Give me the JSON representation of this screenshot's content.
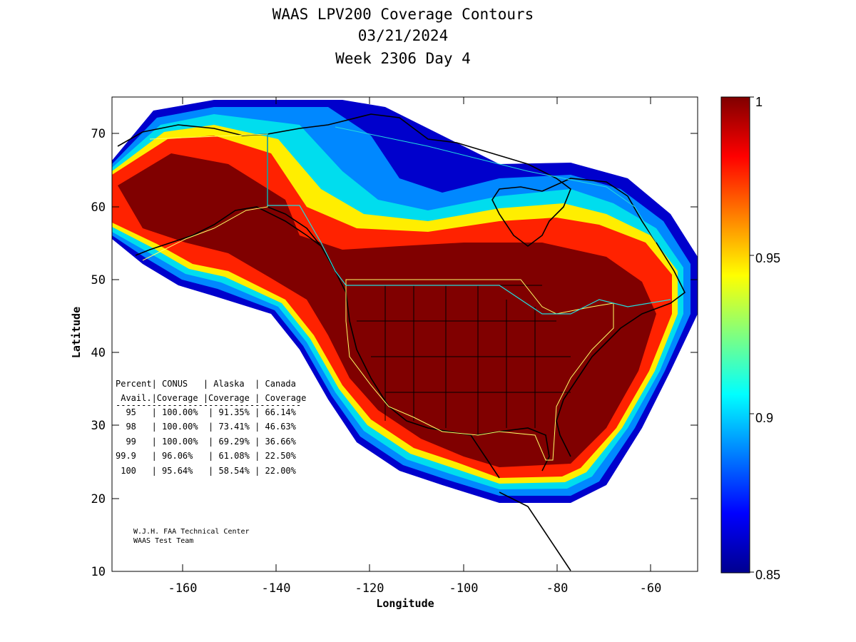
{
  "header": {
    "title": "WAAS LPV200 Coverage Contours",
    "date": "03/21/2024",
    "week_day": "Week 2306 Day 4"
  },
  "axes": {
    "xlabel": "Longitude",
    "ylabel": "Latitude",
    "x_ticks": [
      "-160",
      "-140",
      "-120",
      "-100",
      "-80",
      "-60"
    ],
    "y_ticks": [
      "70",
      "60",
      "50",
      "40",
      "30",
      "20",
      "10"
    ],
    "xlim": [
      -175,
      -50
    ],
    "ylim": [
      10,
      75
    ]
  },
  "colorbar": {
    "ticks": [
      "1",
      "0.95",
      "0.9",
      "0.85"
    ],
    "range": [
      0.85,
      1
    ],
    "colormap": "jet",
    "low_color": "#00008f",
    "high_color": "#800000"
  },
  "table": {
    "header1": "Percent| CONUS   | Alaska  | Canada",
    "header2": " Avail.|Coverage |Coverage | Coverage",
    "separator": "------------------------------------",
    "rows": [
      "  95   | 100.00%  | 91.35% | 66.14%",
      "  98   | 100.00%  | 73.41% | 46.63%",
      "  99   | 100.00%  | 69.29% | 36.66%",
      "99.9   | 96.06%   | 61.08% | 22.50%",
      " 100   | 95.64%   | 58.54% | 22.00%"
    ]
  },
  "credit": {
    "line1": "W.J.H. FAA Technical Center",
    "line2": "WAAS Test Team"
  }
}
